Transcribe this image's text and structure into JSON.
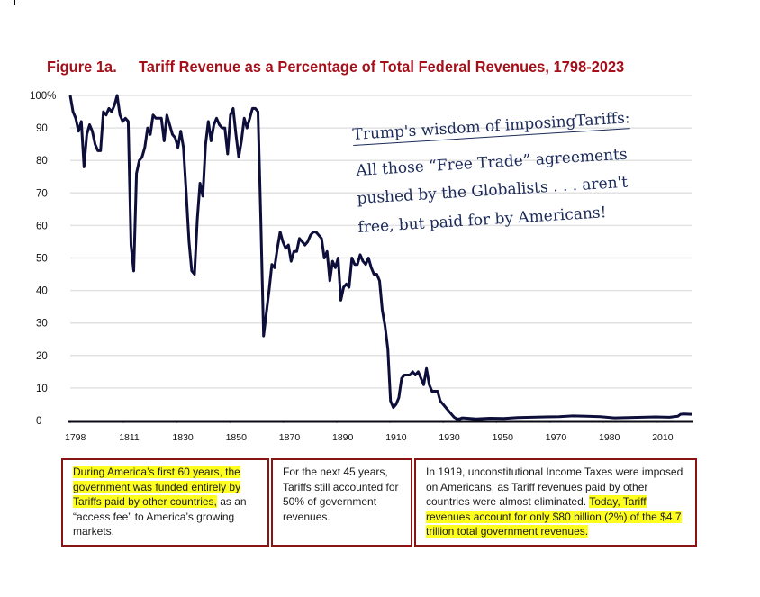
{
  "title": {
    "figure_label": "Figure 1a.",
    "text": "Tariff Revenue as a Percentage of Total Federal Revenues, 1798-2023"
  },
  "colors": {
    "title": "#a50f1a",
    "line": "#0d0f3a",
    "grid": "#e2e2e2",
    "box_border": "#8a1414",
    "highlight": "#ffff1f",
    "note_text": "#1b2a59"
  },
  "annotation": {
    "heading": "Trump's wisdom of imposingTariffs:",
    "lines": [
      "All those “Free Trade” agreements",
      "pushed by the Globalists . . . aren't",
      "free, but paid for by Americans!"
    ]
  },
  "boxes": [
    {
      "highlighted": "During America’s first 60 years, the government was funded entirely by Tariffs paid by other countries,",
      "plain": " as an “access fee” to America’s growing markets."
    },
    {
      "plain": "For the next 45 years, Tariffs still accounted for 50% of government revenues."
    },
    {
      "plain": "In 1919, unconstitutional Income Taxes were imposed on Americans, as Tariff revenues paid by other countries were almost eliminated. ",
      "highlighted": "Today, Tariff revenues account for only $80 billion (2%) of the $4.7 trillion total government revenues."
    }
  ],
  "chart_data": {
    "type": "line",
    "title": "Tariff Revenue as a Percentage of Total Federal Revenues, 1798-2023",
    "xlabel": "",
    "ylabel": "",
    "xlim": [
      1798,
      2023
    ],
    "ylim": [
      0,
      100
    ],
    "grid": true,
    "legend": "none",
    "y_ticks": [
      "0",
      "10",
      "20",
      "30",
      "40",
      "50",
      "60",
      "70",
      "80",
      "90",
      "100%"
    ],
    "y_tick_values": [
      0,
      10,
      20,
      30,
      40,
      50,
      60,
      70,
      80,
      90,
      100
    ],
    "x_ticks": [
      "1798",
      "1811",
      "1830",
      "1850",
      "1870",
      "1890",
      "1910",
      "1930",
      "1950",
      "1970",
      "1980",
      "2010"
    ],
    "series": [
      {
        "name": "Tariff revenue % of federal revenues",
        "points": [
          [
            1798,
            100
          ],
          [
            1799,
            95
          ],
          [
            1800,
            93
          ],
          [
            1801,
            89
          ],
          [
            1802,
            92
          ],
          [
            1803,
            78
          ],
          [
            1804,
            88
          ],
          [
            1805,
            91
          ],
          [
            1806,
            89
          ],
          [
            1807,
            85
          ],
          [
            1808,
            83
          ],
          [
            1809,
            83
          ],
          [
            1810,
            95
          ],
          [
            1811,
            94
          ],
          [
            1812,
            96
          ],
          [
            1813,
            95
          ],
          [
            1814,
            97
          ],
          [
            1815,
            100
          ],
          [
            1816,
            94
          ],
          [
            1817,
            92
          ],
          [
            1818,
            93
          ],
          [
            1819,
            92
          ],
          [
            1820,
            54
          ],
          [
            1821,
            46
          ],
          [
            1822,
            76
          ],
          [
            1823,
            80
          ],
          [
            1824,
            81
          ],
          [
            1825,
            84
          ],
          [
            1826,
            90
          ],
          [
            1827,
            88
          ],
          [
            1828,
            94
          ],
          [
            1829,
            93
          ],
          [
            1830,
            93
          ],
          [
            1831,
            93
          ],
          [
            1832,
            86
          ],
          [
            1833,
            94
          ],
          [
            1834,
            91
          ],
          [
            1835,
            88
          ],
          [
            1836,
            87
          ],
          [
            1837,
            84
          ],
          [
            1838,
            89
          ],
          [
            1839,
            84
          ],
          [
            1840,
            70
          ],
          [
            1841,
            55
          ],
          [
            1842,
            46
          ],
          [
            1843,
            45
          ],
          [
            1844,
            62
          ],
          [
            1845,
            73
          ],
          [
            1846,
            69
          ],
          [
            1847,
            85
          ],
          [
            1848,
            92
          ],
          [
            1849,
            86
          ],
          [
            1850,
            91
          ],
          [
            1851,
            93
          ],
          [
            1852,
            91
          ],
          [
            1853,
            90
          ],
          [
            1854,
            90
          ],
          [
            1855,
            82
          ],
          [
            1856,
            94
          ],
          [
            1857,
            96
          ],
          [
            1858,
            88
          ],
          [
            1859,
            81
          ],
          [
            1860,
            86
          ],
          [
            1861,
            93
          ],
          [
            1862,
            90
          ],
          [
            1863,
            93
          ],
          [
            1864,
            96
          ],
          [
            1865,
            96
          ],
          [
            1866,
            95
          ],
          [
            1867,
            62
          ],
          [
            1868,
            26
          ],
          [
            1869,
            33
          ],
          [
            1870,
            40
          ],
          [
            1871,
            48
          ],
          [
            1872,
            47
          ],
          [
            1873,
            53
          ],
          [
            1874,
            58
          ],
          [
            1875,
            55
          ],
          [
            1876,
            53
          ],
          [
            1877,
            54
          ],
          [
            1878,
            49
          ],
          [
            1879,
            52
          ],
          [
            1880,
            52
          ],
          [
            1881,
            56
          ],
          [
            1882,
            55
          ],
          [
            1883,
            54
          ],
          [
            1884,
            55
          ],
          [
            1885,
            57
          ],
          [
            1886,
            58
          ],
          [
            1887,
            58
          ],
          [
            1888,
            57
          ],
          [
            1889,
            56
          ],
          [
            1890,
            50
          ],
          [
            1891,
            52
          ],
          [
            1892,
            43
          ],
          [
            1893,
            49
          ],
          [
            1894,
            47
          ],
          [
            1895,
            50
          ],
          [
            1896,
            37
          ],
          [
            1897,
            41
          ],
          [
            1898,
            42
          ],
          [
            1899,
            41
          ],
          [
            1900,
            50
          ],
          [
            1901,
            48
          ],
          [
            1902,
            48
          ],
          [
            1903,
            51
          ],
          [
            1904,
            49
          ],
          [
            1905,
            48
          ],
          [
            1906,
            50
          ],
          [
            1907,
            47
          ],
          [
            1908,
            45
          ],
          [
            1909,
            45
          ],
          [
            1910,
            43
          ],
          [
            1911,
            34
          ],
          [
            1912,
            29
          ],
          [
            1913,
            22
          ],
          [
            1914,
            6
          ],
          [
            1915,
            4
          ],
          [
            1916,
            5
          ],
          [
            1917,
            7
          ],
          [
            1918,
            13
          ],
          [
            1919,
            14
          ],
          [
            1920,
            14
          ],
          [
            1921,
            14
          ],
          [
            1922,
            15
          ],
          [
            1923,
            14
          ],
          [
            1924,
            15
          ],
          [
            1925,
            13
          ],
          [
            1926,
            11
          ],
          [
            1927,
            16
          ],
          [
            1928,
            11
          ],
          [
            1929,
            9
          ],
          [
            1930,
            9
          ],
          [
            1931,
            9
          ],
          [
            1932,
            6
          ],
          [
            1933,
            5
          ],
          [
            1934,
            4
          ],
          [
            1935,
            3
          ],
          [
            1936,
            2
          ],
          [
            1937,
            1
          ],
          [
            1938,
            0.5
          ],
          [
            1939,
            0.5
          ],
          [
            1940,
            0.8
          ],
          [
            1945,
            0.5
          ],
          [
            1950,
            0.7
          ],
          [
            1955,
            0.6
          ],
          [
            1960,
            0.9
          ],
          [
            1965,
            1.0
          ],
          [
            1970,
            1.1
          ],
          [
            1975,
            1.2
          ],
          [
            1980,
            1.4
          ],
          [
            1985,
            1.3
          ],
          [
            1990,
            1.2
          ],
          [
            1995,
            0.8
          ],
          [
            2000,
            0.9
          ],
          [
            2005,
            1.0
          ],
          [
            2010,
            1.1
          ],
          [
            2015,
            1.0
          ],
          [
            2018,
            1.3
          ],
          [
            2019,
            1.9
          ],
          [
            2020,
            2.0
          ],
          [
            2023,
            1.9
          ]
        ]
      }
    ]
  }
}
